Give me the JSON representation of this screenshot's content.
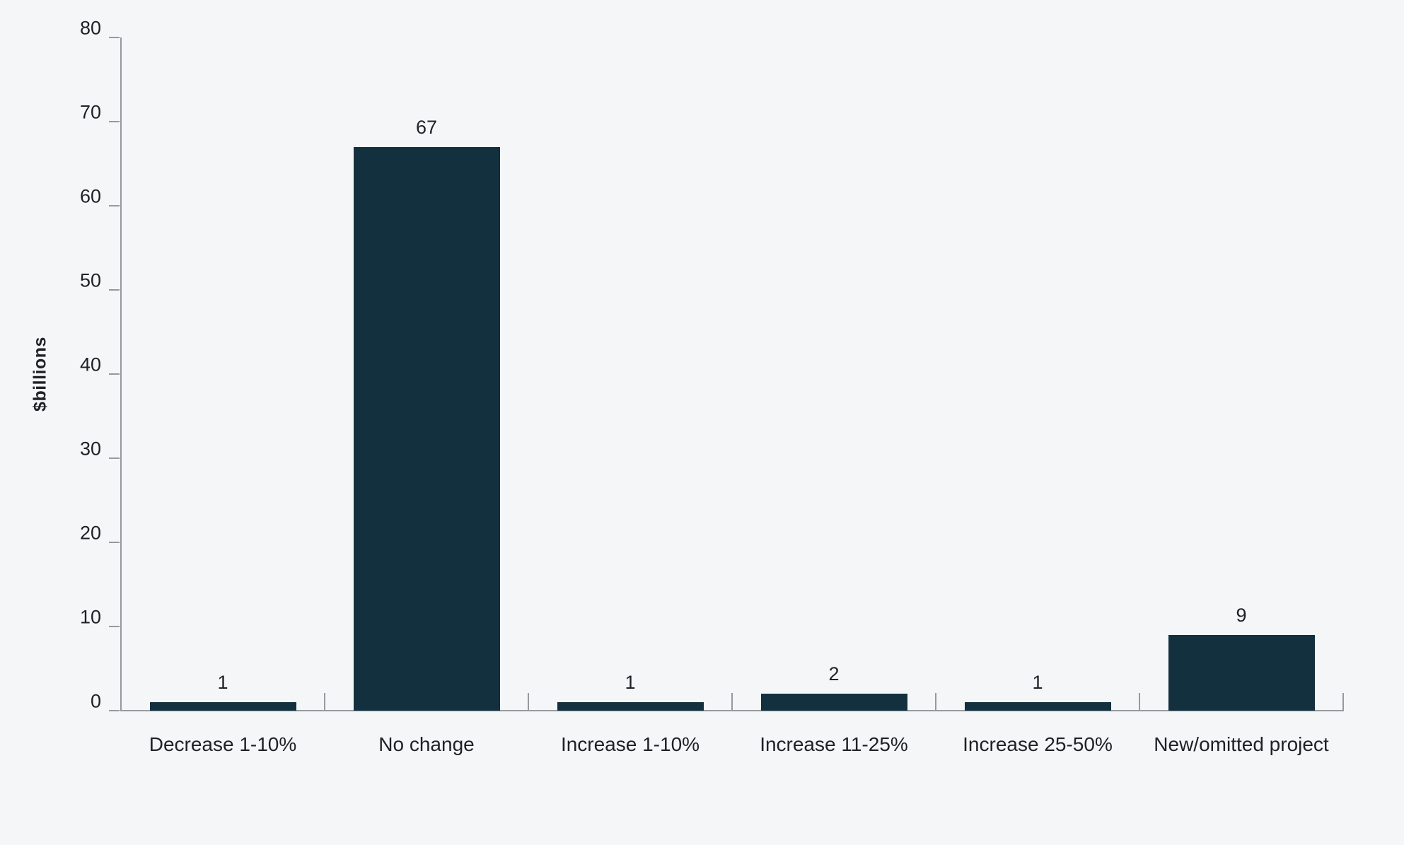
{
  "chart_data": {
    "type": "bar",
    "title": "",
    "categories": [
      "Decrease 1-10%",
      "No change",
      "Increase 1-10%",
      "Increase 11-25%",
      "Increase 25-50%",
      "New/omitted project"
    ],
    "values": [
      1,
      67,
      1,
      2,
      1,
      9
    ],
    "data_labels": [
      "1",
      "67",
      "1",
      "2",
      "1",
      "9"
    ],
    "xlabel": "",
    "ylabel": "$billions",
    "ylim": [
      0,
      80
    ],
    "yticks": [
      0,
      10,
      20,
      30,
      40,
      50,
      60,
      70,
      80
    ],
    "grid": false,
    "legend": "none",
    "colors": {
      "bar": "#13303e",
      "background": "#f5f6f7",
      "axis": "#959aa0",
      "text": "#1e2125"
    }
  }
}
